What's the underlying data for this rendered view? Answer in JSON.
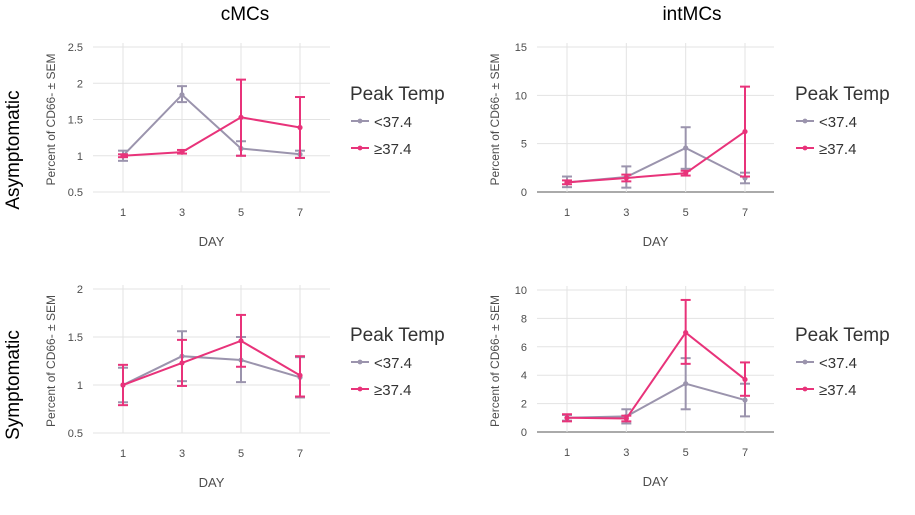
{
  "colors": {
    "series_low": "#9b94ad",
    "series_high": "#e8337a",
    "grid": "#e3e3e3",
    "axis_text": "#4d4d4d"
  },
  "column_titles": [
    "cMCs",
    "intMCs"
  ],
  "row_titles": [
    "Asymptomatic",
    "Symptomatic"
  ],
  "legend": {
    "title": "Peak Temp",
    "entries": [
      "<37.4",
      "≥37.4"
    ]
  },
  "chart_data": [
    {
      "type": "line",
      "row": "Asymptomatic",
      "column": "cMCs",
      "xlabel": "DAY",
      "ylabel": "Percent of CD66- ± SEM",
      "x": [
        1,
        3,
        5,
        7
      ],
      "ylim": [
        0.5,
        2.5
      ],
      "yticks": [
        0.5,
        1,
        1.5,
        2,
        2.5
      ],
      "ytick_labels": [
        "0.5",
        "1",
        "1.5",
        "2",
        "2.5"
      ],
      "grid": true,
      "series": [
        {
          "name": "<37.4",
          "values": [
            1.0,
            1.84,
            1.1,
            1.02
          ],
          "err_low": [
            0.93,
            1.74,
            1.0,
            0.97
          ],
          "err_high": [
            1.07,
            1.96,
            1.2,
            1.07
          ]
        },
        {
          "name": "≥37.4",
          "values": [
            1.0,
            1.05,
            1.53,
            1.39
          ],
          "err_low": [
            0.98,
            1.03,
            1.0,
            0.97
          ],
          "err_high": [
            1.02,
            1.08,
            2.05,
            1.81
          ]
        }
      ]
    },
    {
      "type": "line",
      "row": "Asymptomatic",
      "column": "intMCs",
      "xlabel": "DAY",
      "ylabel": "Percent of CD66- ± SEM",
      "x": [
        1,
        3,
        5,
        7
      ],
      "ylim": [
        0,
        15
      ],
      "yticks": [
        0,
        5,
        10,
        15
      ],
      "ytick_labels": [
        "0",
        "5",
        "10",
        "15"
      ],
      "grid": true,
      "series": [
        {
          "name": "<37.4",
          "values": [
            1.0,
            1.55,
            4.55,
            1.45
          ],
          "err_low": [
            0.5,
            0.45,
            2.4,
            0.9
          ],
          "err_high": [
            1.6,
            2.65,
            6.7,
            2.0
          ]
        },
        {
          "name": "≥37.4",
          "values": [
            1.0,
            1.45,
            1.95,
            6.25
          ],
          "err_low": [
            0.8,
            1.1,
            1.7,
            1.6
          ],
          "err_high": [
            1.2,
            1.8,
            2.2,
            10.9
          ]
        }
      ]
    },
    {
      "type": "line",
      "row": "Symptomatic",
      "column": "cMCs",
      "xlabel": "DAY",
      "ylabel": "Percent of CD66- ± SEM",
      "x": [
        1,
        3,
        5,
        7
      ],
      "ylim": [
        0.5,
        2
      ],
      "yticks": [
        0.5,
        1,
        1.5,
        2
      ],
      "ytick_labels": [
        "0.5",
        "1",
        "1.5",
        "2"
      ],
      "grid": true,
      "series": [
        {
          "name": "<37.4",
          "values": [
            1.0,
            1.3,
            1.26,
            1.08
          ],
          "err_low": [
            0.82,
            1.04,
            1.03,
            0.87
          ],
          "err_high": [
            1.18,
            1.56,
            1.5,
            1.29
          ]
        },
        {
          "name": "≥37.4",
          "values": [
            1.0,
            1.23,
            1.46,
            1.1
          ],
          "err_low": [
            0.79,
            0.99,
            1.19,
            0.88
          ],
          "err_high": [
            1.21,
            1.47,
            1.73,
            1.3
          ]
        }
      ]
    },
    {
      "type": "line",
      "row": "Symptomatic",
      "column": "intMCs",
      "xlabel": "DAY",
      "ylabel": "Percent of CD66- ± SEM",
      "x": [
        1,
        3,
        5,
        7
      ],
      "ylim": [
        0,
        10
      ],
      "yticks": [
        0,
        2,
        4,
        6,
        8,
        10
      ],
      "ytick_labels": [
        "0",
        "2",
        "4",
        "6",
        "8",
        "10"
      ],
      "grid": true,
      "series": [
        {
          "name": "<37.4",
          "values": [
            1.0,
            1.1,
            3.4,
            2.25
          ],
          "err_low": [
            0.8,
            0.6,
            1.6,
            1.1
          ],
          "err_high": [
            1.2,
            1.6,
            5.2,
            3.4
          ]
        },
        {
          "name": "≥37.4",
          "values": [
            1.0,
            0.95,
            7.0,
            3.7
          ],
          "err_low": [
            0.75,
            0.75,
            4.8,
            2.55
          ],
          "err_high": [
            1.25,
            1.15,
            9.3,
            4.9
          ]
        }
      ]
    }
  ]
}
